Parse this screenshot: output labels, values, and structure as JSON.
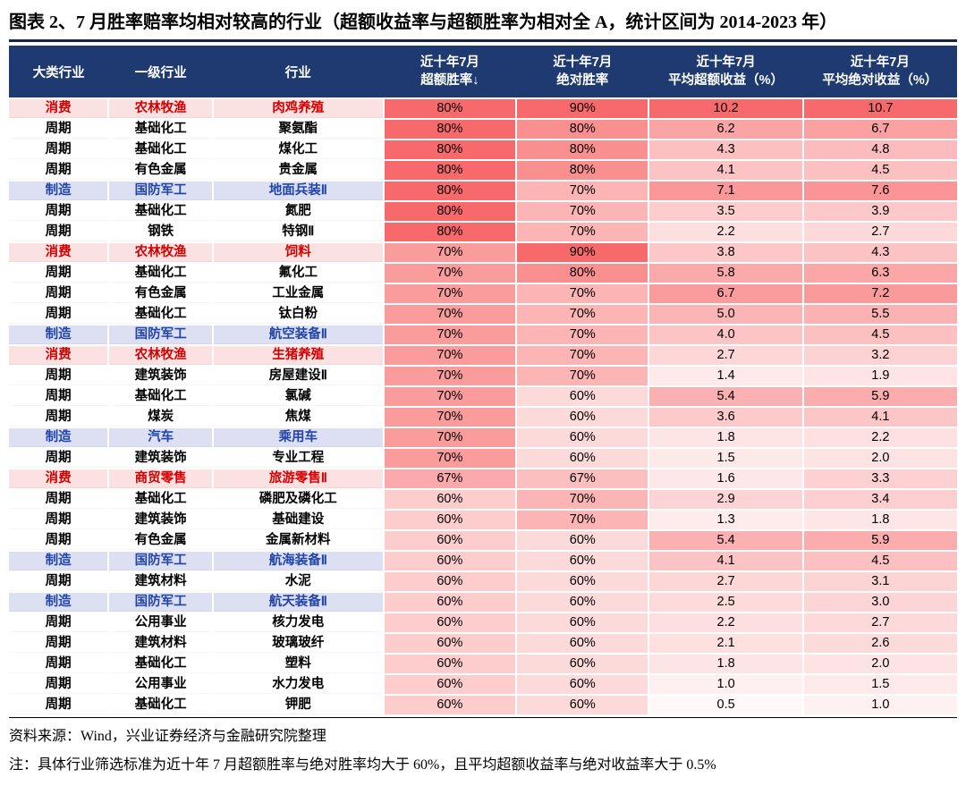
{
  "title": "图表 2、7 月胜率赔率均相对较高的行业（超额收益率与超额胜率为相对全 A，统计区间为 2014-2023 年）",
  "chart_data": {
    "type": "table",
    "subtype": "heatmap",
    "title": "7 月胜率赔率均相对较高的行业",
    "columns": [
      {
        "label": "大类行业"
      },
      {
        "label": "一级行业"
      },
      {
        "label": "行业"
      },
      {
        "label": "近十年7月",
        "label2": "超额胜率↓"
      },
      {
        "label": "近十年7月",
        "label2": "绝对胜率"
      },
      {
        "label": "近十年7月",
        "label2": "平均超额收益（%）"
      },
      {
        "label": "近十年7月",
        "label2": "平均绝对收益（%）"
      }
    ],
    "rows": [
      {
        "category": "消费",
        "level1": "农林牧渔",
        "industry": "肉鸡养殖",
        "excess_win": 80,
        "abs_win": 90,
        "excess_ret": 10.2,
        "abs_ret": 10.7
      },
      {
        "category": "周期",
        "level1": "基础化工",
        "industry": "聚氨酯",
        "excess_win": 80,
        "abs_win": 80,
        "excess_ret": 6.2,
        "abs_ret": 6.7
      },
      {
        "category": "周期",
        "level1": "基础化工",
        "industry": "煤化工",
        "excess_win": 80,
        "abs_win": 80,
        "excess_ret": 4.3,
        "abs_ret": 4.8
      },
      {
        "category": "周期",
        "level1": "有色金属",
        "industry": "贵金属",
        "excess_win": 80,
        "abs_win": 80,
        "excess_ret": 4.1,
        "abs_ret": 4.5
      },
      {
        "category": "制造",
        "level1": "国防军工",
        "industry": "地面兵装Ⅱ",
        "excess_win": 80,
        "abs_win": 70,
        "excess_ret": 7.1,
        "abs_ret": 7.6
      },
      {
        "category": "周期",
        "level1": "基础化工",
        "industry": "氮肥",
        "excess_win": 80,
        "abs_win": 70,
        "excess_ret": 3.5,
        "abs_ret": 3.9
      },
      {
        "category": "周期",
        "level1": "钢铁",
        "industry": "特钢Ⅱ",
        "excess_win": 80,
        "abs_win": 70,
        "excess_ret": 2.2,
        "abs_ret": 2.7
      },
      {
        "category": "消费",
        "level1": "农林牧渔",
        "industry": "饲料",
        "excess_win": 70,
        "abs_win": 90,
        "excess_ret": 3.8,
        "abs_ret": 4.3
      },
      {
        "category": "周期",
        "level1": "基础化工",
        "industry": "氟化工",
        "excess_win": 70,
        "abs_win": 80,
        "excess_ret": 5.8,
        "abs_ret": 6.3
      },
      {
        "category": "周期",
        "level1": "有色金属",
        "industry": "工业金属",
        "excess_win": 70,
        "abs_win": 70,
        "excess_ret": 6.7,
        "abs_ret": 7.2
      },
      {
        "category": "周期",
        "level1": "基础化工",
        "industry": "钛白粉",
        "excess_win": 70,
        "abs_win": 70,
        "excess_ret": 5.0,
        "abs_ret": 5.5
      },
      {
        "category": "制造",
        "level1": "国防军工",
        "industry": "航空装备Ⅱ",
        "excess_win": 70,
        "abs_win": 70,
        "excess_ret": 4.0,
        "abs_ret": 4.5
      },
      {
        "category": "消费",
        "level1": "农林牧渔",
        "industry": "生猪养殖",
        "excess_win": 70,
        "abs_win": 70,
        "excess_ret": 2.7,
        "abs_ret": 3.2
      },
      {
        "category": "周期",
        "level1": "建筑装饰",
        "industry": "房屋建设Ⅱ",
        "excess_win": 70,
        "abs_win": 70,
        "excess_ret": 1.4,
        "abs_ret": 1.9
      },
      {
        "category": "周期",
        "level1": "基础化工",
        "industry": "氯碱",
        "excess_win": 70,
        "abs_win": 60,
        "excess_ret": 5.4,
        "abs_ret": 5.9
      },
      {
        "category": "周期",
        "level1": "煤炭",
        "industry": "焦煤",
        "excess_win": 70,
        "abs_win": 60,
        "excess_ret": 3.6,
        "abs_ret": 4.1
      },
      {
        "category": "制造",
        "level1": "汽车",
        "industry": "乘用车",
        "excess_win": 70,
        "abs_win": 60,
        "excess_ret": 1.8,
        "abs_ret": 2.2
      },
      {
        "category": "周期",
        "level1": "建筑装饰",
        "industry": "专业工程",
        "excess_win": 70,
        "abs_win": 60,
        "excess_ret": 1.5,
        "abs_ret": 2.0
      },
      {
        "category": "消费",
        "level1": "商贸零售",
        "industry": "旅游零售Ⅱ",
        "excess_win": 67,
        "abs_win": 67,
        "excess_ret": 1.6,
        "abs_ret": 3.3
      },
      {
        "category": "周期",
        "level1": "基础化工",
        "industry": "磷肥及磷化工",
        "excess_win": 60,
        "abs_win": 70,
        "excess_ret": 2.9,
        "abs_ret": 3.4
      },
      {
        "category": "周期",
        "level1": "建筑装饰",
        "industry": "基础建设",
        "excess_win": 60,
        "abs_win": 70,
        "excess_ret": 1.3,
        "abs_ret": 1.8
      },
      {
        "category": "周期",
        "level1": "有色金属",
        "industry": "金属新材料",
        "excess_win": 60,
        "abs_win": 60,
        "excess_ret": 5.4,
        "abs_ret": 5.9
      },
      {
        "category": "制造",
        "level1": "国防军工",
        "industry": "航海装备Ⅱ",
        "excess_win": 60,
        "abs_win": 60,
        "excess_ret": 4.1,
        "abs_ret": 4.5
      },
      {
        "category": "周期",
        "level1": "建筑材料",
        "industry": "水泥",
        "excess_win": 60,
        "abs_win": 60,
        "excess_ret": 2.7,
        "abs_ret": 3.1
      },
      {
        "category": "制造",
        "level1": "国防军工",
        "industry": "航天装备Ⅱ",
        "excess_win": 60,
        "abs_win": 60,
        "excess_ret": 2.5,
        "abs_ret": 3.0
      },
      {
        "category": "周期",
        "level1": "公用事业",
        "industry": "核力发电",
        "excess_win": 60,
        "abs_win": 60,
        "excess_ret": 2.2,
        "abs_ret": 2.7
      },
      {
        "category": "周期",
        "level1": "建筑材料",
        "industry": "玻璃玻纤",
        "excess_win": 60,
        "abs_win": 60,
        "excess_ret": 2.1,
        "abs_ret": 2.6
      },
      {
        "category": "周期",
        "level1": "基础化工",
        "industry": "塑料",
        "excess_win": 60,
        "abs_win": 60,
        "excess_ret": 1.8,
        "abs_ret": 2.0
      },
      {
        "category": "周期",
        "level1": "公用事业",
        "industry": "水力发电",
        "excess_win": 60,
        "abs_win": 60,
        "excess_ret": 1.0,
        "abs_ret": 1.5
      },
      {
        "category": "周期",
        "level1": "基础化工",
        "industry": "钾肥",
        "excess_win": 60,
        "abs_win": 60,
        "excess_ret": 0.5,
        "abs_ret": 1.0
      }
    ]
  },
  "colors": {
    "header_bg": "#1F3A70",
    "header_text": "#FFFFFF",
    "title_rule": "#1A2440",
    "category_styles": {
      "消费": {
        "text": "#D40000",
        "bg": "#FBE1E1"
      },
      "制造": {
        "text": "#2144A8",
        "bg": "#DCE0F2"
      },
      "周期": {
        "text": "#000000",
        "bg": "#FFFFFF"
      }
    },
    "heatmap": {
      "min_color": "#FFFFFF",
      "max_color": "#F8696B",
      "scales": {
        "excess_win": {
          "min": 50,
          "max": 80
        },
        "abs_win": {
          "min": 50,
          "max": 90
        },
        "excess_ret": {
          "min": 0,
          "max": 10.2
        },
        "abs_ret": {
          "min": 0,
          "max": 10.7
        }
      }
    }
  },
  "footer": {
    "source": "资料来源：Wind，兴业证券经济与金融研究院整理",
    "note": "注：具体行业筛选标准为近十年 7 月超额胜率与绝对胜率均大于 60%，且平均超额收益率与绝对收益率大于 0.5%"
  }
}
